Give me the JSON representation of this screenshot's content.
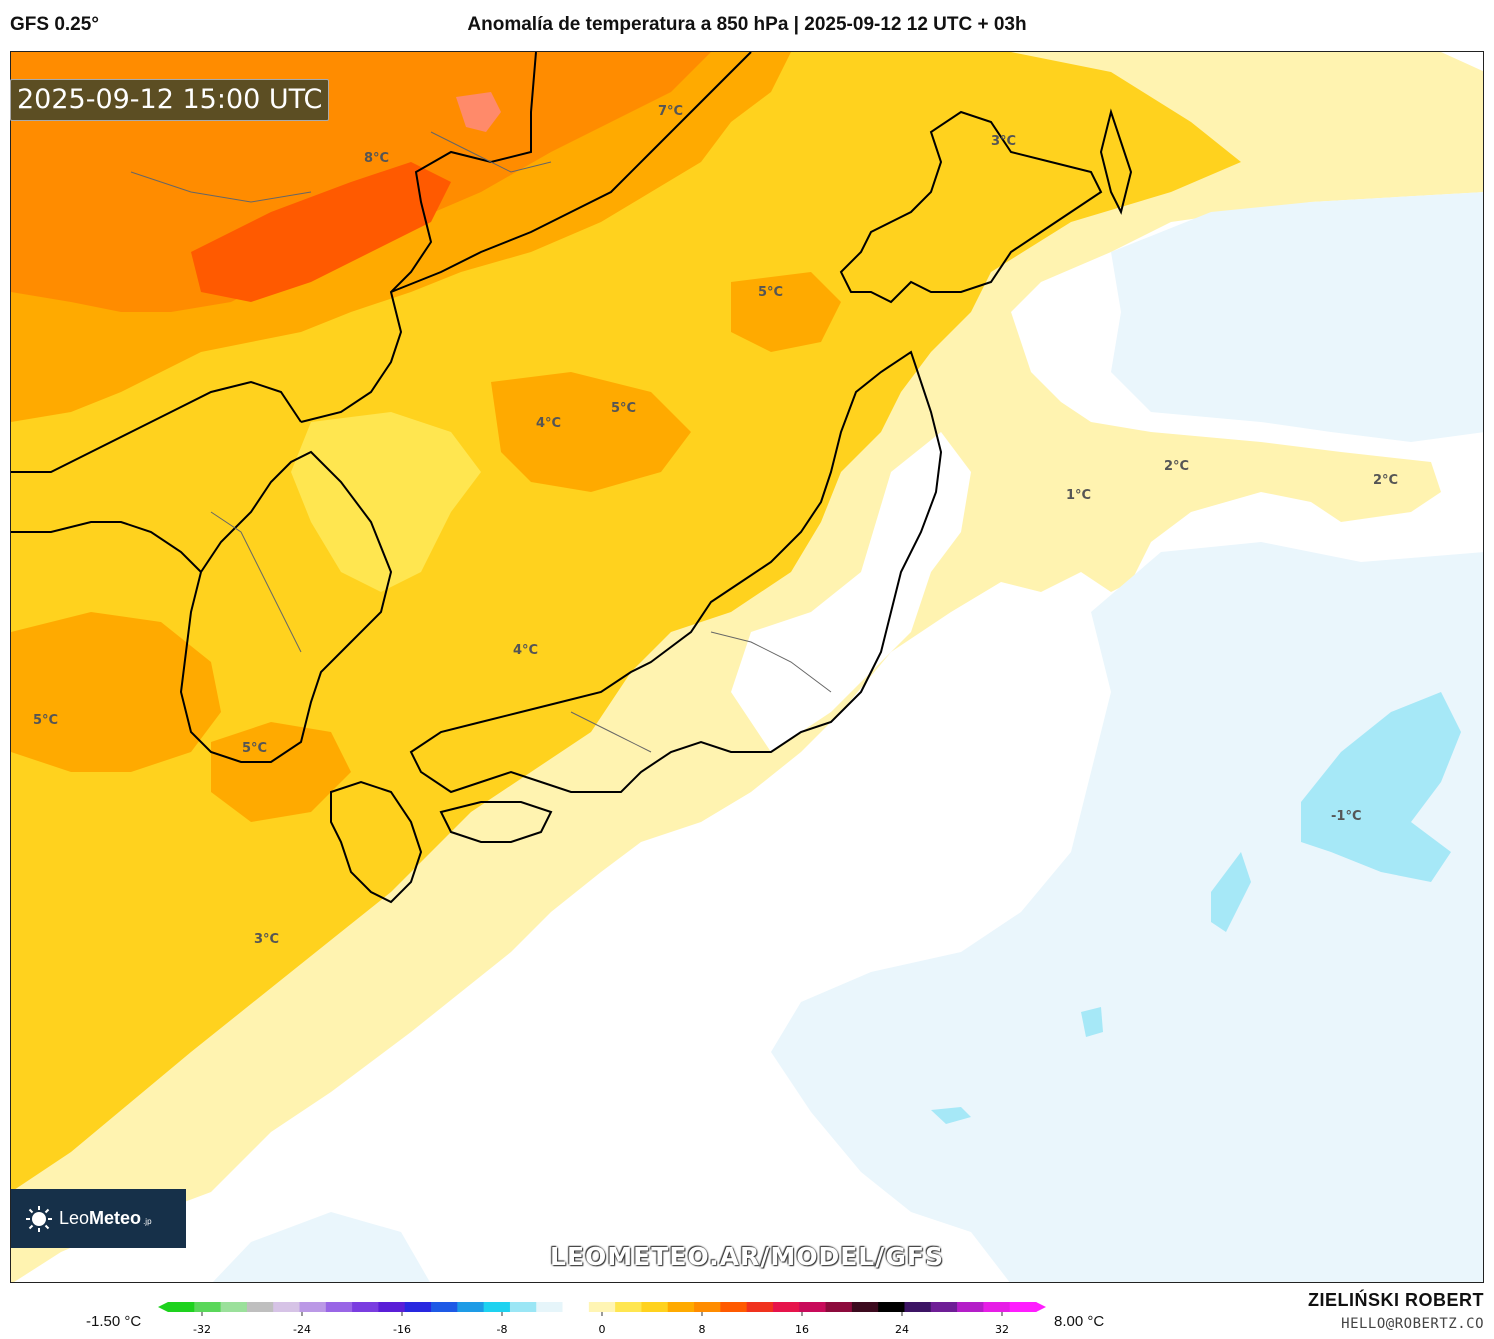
{
  "header": {
    "model": "GFS 0.25°",
    "title": "Anomalía de temperatura a 850 hPa | 2025-09-12 12 UTC + 03h"
  },
  "map": {
    "timestamp": "2025-09-12 15:00 UTC",
    "contour_labels": [
      "8°C",
      "7°C",
      "3°C",
      "5°C",
      "4°C",
      "5°C",
      "1°C",
      "2°C",
      "2°C",
      "4°C",
      "5°C",
      "5°C",
      "-1°C",
      "3°C"
    ],
    "watermark": "LEOMETEO.AR/MODEL/GFS"
  },
  "brand": {
    "name_regular": "Leo",
    "name_bold": "Meteo",
    "suffix": ".jp"
  },
  "colorbar": {
    "min_label": "-1.50 °C",
    "max_label": "8.00 °C",
    "ticks": [
      "-32",
      "-24",
      "-16",
      "-8",
      "0",
      "8",
      "16",
      "24",
      "32"
    ],
    "colors": [
      "#1ed21e",
      "#5ad75a",
      "#9be09b",
      "#bfbfbf",
      "#d6c3e6",
      "#bb99e6",
      "#9966e6",
      "#7a3de0",
      "#5a1ed7",
      "#2828e0",
      "#1e5ae6",
      "#1e9be6",
      "#1ed2f0",
      "#9be6f5",
      "#e6f5fa",
      "#ffffff",
      "#fff5b4",
      "#ffe650",
      "#ffd21e",
      "#ffaa00",
      "#ff8c00",
      "#ff5a00",
      "#f0321e",
      "#e6144b",
      "#c80a5a",
      "#8c0a3c",
      "#3c0a1e",
      "#000000",
      "#3c1464",
      "#6e1e96",
      "#b41ec8",
      "#e61ee6",
      "#ff1eff"
    ]
  },
  "footer": {
    "author": "ZIELIŃSKI ROBERT",
    "email": "HELLO@ROBERTZ.CO"
  }
}
